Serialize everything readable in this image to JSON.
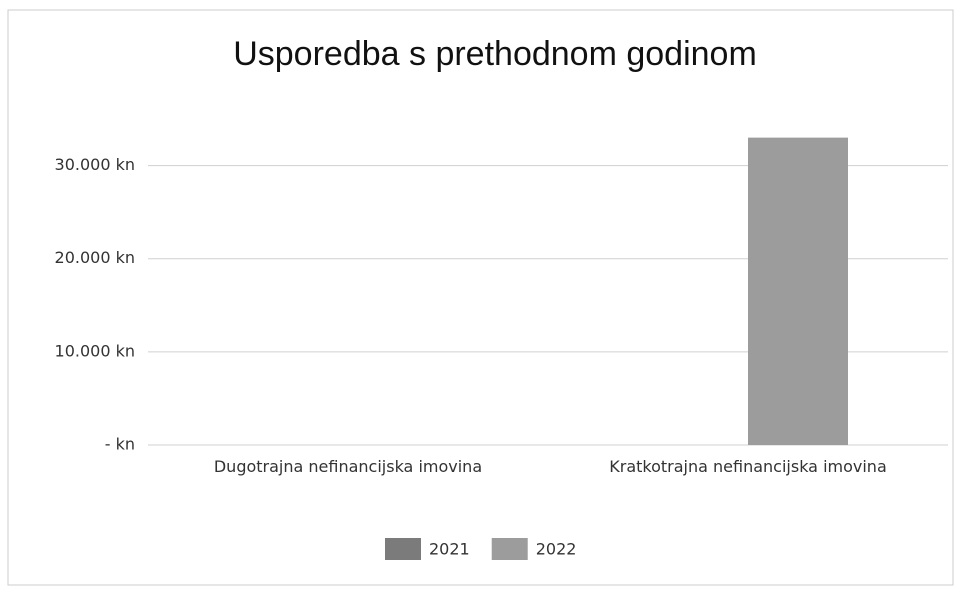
{
  "chart_data": {
    "type": "bar",
    "title": "Usporedba s prethodnom godinom",
    "categories": [
      "Dugotrajna nefinancijska imovina",
      "Kratkotrajna nefinancijska imovina"
    ],
    "series": [
      {
        "name": "2021",
        "color": "#7b7b7b",
        "values": [
          0,
          0
        ]
      },
      {
        "name": "2022",
        "color": "#9c9c9c",
        "values": [
          0,
          33000
        ]
      }
    ],
    "ylim": [
      0,
      35000
    ],
    "yticks": [
      {
        "value": 0,
        "label": "- kn"
      },
      {
        "value": 10000,
        "label": "10.000 kn"
      },
      {
        "value": 20000,
        "label": "20.000 kn"
      },
      {
        "value": 30000,
        "label": "30.000 kn"
      }
    ],
    "grid": true,
    "legend": "bottom"
  }
}
